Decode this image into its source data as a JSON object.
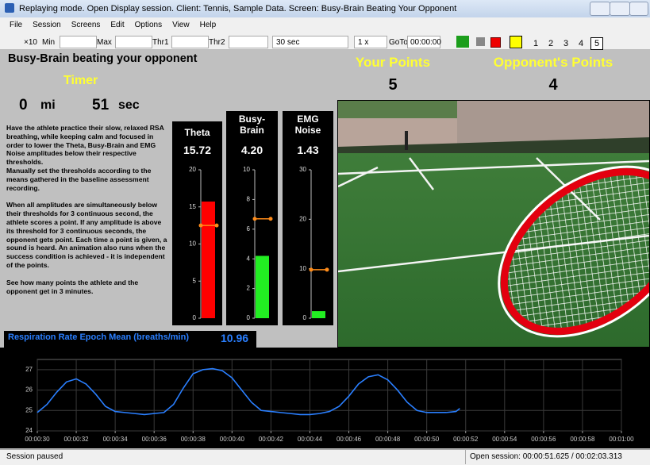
{
  "window": {
    "title": "Replaying mode. Open Display session. Client: Tennis, Sample Data. Screen: Busy-Brain Beating Your Opponent"
  },
  "menu": [
    "File",
    "Session",
    "Screens",
    "Edit",
    "Options",
    "View",
    "Help"
  ],
  "toolbar": {
    "zoom": "×10",
    "min": "Min",
    "max": "Max",
    "thr1": "Thr1",
    "thr2": "Thr2",
    "duration": "30 sec",
    "speed": "1 x",
    "goto": "GoTo",
    "goto_time": "00:00:00",
    "screens": [
      "1",
      "2",
      "3",
      "4",
      "5"
    ]
  },
  "screen": {
    "title": "Busy-Brain beating your opponent",
    "timer": {
      "label": "Timer",
      "minutes": 0,
      "minutes_unit": "mi",
      "seconds": 51,
      "seconds_unit": "sec"
    },
    "instructions": [
      "Have the athlete practice their slow, relaxed RSA breathing, while keeping calm and focused in order to lower the Theta, Busy-Brain and EMG Noise amplitudes below their respective thresholds.",
      "Manually set the thresholds according to the means gathered in the baseline assessment recording.",
      "When all amplitudes are simultaneously below their thresholds for 3 continuous second, the athlete scores a point. If any amplitude is above its threshold for 3 continuous seconds, the opponent gets point. Each time a point is given, a sound is heard. An animation also runs when the success condition is achieved - it is independent of the points.",
      "See how many points the athlete and the opponent get in 3 minutes."
    ],
    "your_points": {
      "label": "Your Points",
      "value": 5
    },
    "opponent_points": {
      "label": "Opponent's Points",
      "value": 4
    }
  },
  "chart_data": [
    {
      "type": "bar",
      "title": "Theta",
      "values": [
        15.72
      ],
      "color": "#ff0000",
      "ylim": [
        0,
        20
      ],
      "yticks": [
        0,
        5,
        10,
        15,
        20
      ],
      "threshold": 12.5,
      "threshold_color": "#ff8c1a"
    },
    {
      "type": "bar",
      "title": "Busy-Brain",
      "values": [
        4.2
      ],
      "value_labels": [
        "4.20"
      ],
      "color": "#22ee22",
      "ylim": [
        0,
        10
      ],
      "yticks": [
        0,
        2,
        4,
        6,
        8,
        10
      ],
      "threshold": 6.7,
      "threshold_color": "#ff8c1a"
    },
    {
      "type": "bar",
      "title": "EMG Noise",
      "values": [
        1.43
      ],
      "color": "#22ee22",
      "ylim": [
        0,
        30
      ],
      "yticks": [
        0,
        10,
        20,
        30
      ],
      "threshold": 9.8,
      "threshold_color": "#ff8c1a"
    },
    {
      "type": "line",
      "title": "Respiration Rate Epoch Mean (breaths/min)",
      "current_value": 10.96,
      "color": "#2a7fff",
      "grid": true,
      "x": [
        30,
        30.5,
        31,
        31.5,
        32,
        32.5,
        33,
        33.5,
        34,
        34.5,
        35,
        35.5,
        36,
        36.5,
        37,
        37.5,
        38,
        38.5,
        39,
        39.5,
        40,
        40.5,
        41,
        41.5,
        42,
        42.5,
        43,
        43.5,
        44,
        44.5,
        45,
        45.5,
        46,
        46.5,
        47,
        47.5,
        48,
        48.5,
        49,
        49.5,
        50,
        50.5,
        51,
        51.5,
        51.7
      ],
      "values": [
        24.9,
        25.3,
        25.9,
        26.4,
        26.55,
        26.3,
        25.8,
        25.2,
        24.95,
        24.9,
        24.85,
        24.8,
        24.85,
        24.9,
        25.3,
        26.1,
        26.8,
        27.0,
        27.05,
        26.95,
        26.6,
        26.0,
        25.4,
        25.0,
        24.95,
        24.9,
        24.85,
        24.8,
        24.8,
        24.85,
        24.95,
        25.2,
        25.7,
        26.3,
        26.65,
        26.75,
        26.5,
        26.0,
        25.4,
        25.0,
        24.9,
        24.9,
        24.9,
        24.95,
        25.1
      ],
      "xlim": [
        30,
        60
      ],
      "xticks": [
        {
          "value": 30,
          "label": "00:00:30"
        },
        {
          "value": 32,
          "label": "00:00:32"
        },
        {
          "value": 34,
          "label": "00:00:34"
        },
        {
          "value": 36,
          "label": "00:00:36"
        },
        {
          "value": 38,
          "label": "00:00:38"
        },
        {
          "value": 40,
          "label": "00:00:40"
        },
        {
          "value": 42,
          "label": "00:00:42"
        },
        {
          "value": 44,
          "label": "00:00:44"
        },
        {
          "value": 46,
          "label": "00:00:46"
        },
        {
          "value": 48,
          "label": "00:00:48"
        },
        {
          "value": 50,
          "label": "00:00:50"
        },
        {
          "value": 52,
          "label": "00:00:52"
        },
        {
          "value": 54,
          "label": "00:00:54"
        },
        {
          "value": 56,
          "label": "00:00:56"
        },
        {
          "value": 58,
          "label": "00:00:58"
        },
        {
          "value": 60,
          "label": "00:01:00"
        }
      ],
      "ylim": [
        24,
        27.5
      ],
      "yticks": [
        24,
        25,
        26,
        27
      ]
    }
  ],
  "status": {
    "left": "Session paused",
    "right": "Open session: 00:00:51.625 / 00:02:03.313"
  }
}
